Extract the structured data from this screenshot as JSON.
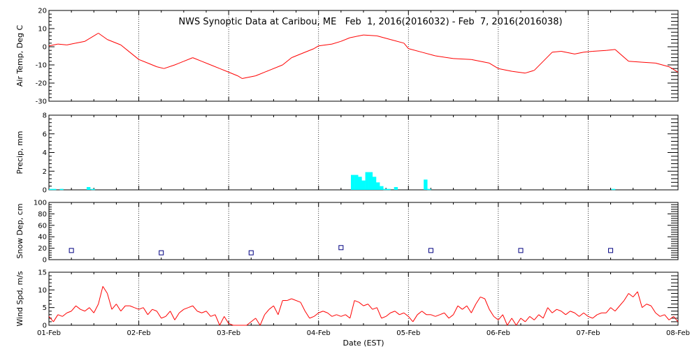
{
  "title": "NWS Synoptic Data at Caribou, ME   Feb  1, 2016(2016032) - Feb  7, 2016(2016038)",
  "xlabel": "Date (EST)",
  "x_ticks": [
    "01-Feb",
    "02-Feb",
    "03-Feb",
    "04-Feb",
    "05-Feb",
    "06-Feb",
    "07-Feb",
    "08-Feb"
  ],
  "colors": {
    "temp": "#ff0000",
    "precip": "#00ffff",
    "snow": "#000080",
    "wind": "#ff0000",
    "grid": "#000000"
  },
  "chart_data": [
    {
      "type": "line",
      "ylabel": "Air Temp, Deg C",
      "ylim": [
        -30,
        20
      ],
      "y_ticks": [
        20,
        10,
        0,
        -10,
        -20,
        -30
      ],
      "x_unit": "days since 01-Feb 00:00 EST",
      "points": [
        [
          0,
          0.5
        ],
        [
          0.1,
          1.5
        ],
        [
          0.2,
          1
        ],
        [
          0.3,
          2
        ],
        [
          0.4,
          3
        ],
        [
          0.5,
          6
        ],
        [
          0.55,
          7.5
        ],
        [
          0.65,
          4
        ],
        [
          0.8,
          1
        ],
        [
          0.9,
          -3
        ],
        [
          1.0,
          -7
        ],
        [
          1.1,
          -9
        ],
        [
          1.2,
          -11
        ],
        [
          1.28,
          -12
        ],
        [
          1.4,
          -10
        ],
        [
          1.5,
          -8
        ],
        [
          1.6,
          -6
        ],
        [
          1.7,
          -8
        ],
        [
          1.8,
          -10
        ],
        [
          1.9,
          -12
        ],
        [
          2.0,
          -14
        ],
        [
          2.1,
          -16
        ],
        [
          2.15,
          -17.5
        ],
        [
          2.3,
          -16
        ],
        [
          2.45,
          -13
        ],
        [
          2.6,
          -10
        ],
        [
          2.7,
          -6
        ],
        [
          2.8,
          -4
        ],
        [
          2.95,
          -1
        ],
        [
          3.0,
          0.5
        ],
        [
          3.15,
          1.5
        ],
        [
          3.25,
          3
        ],
        [
          3.35,
          5
        ],
        [
          3.5,
          6.5
        ],
        [
          3.65,
          6
        ],
        [
          3.8,
          4
        ],
        [
          3.95,
          2
        ],
        [
          4.0,
          -1
        ],
        [
          4.15,
          -3
        ],
        [
          4.3,
          -5
        ],
        [
          4.5,
          -6.5
        ],
        [
          4.7,
          -7
        ],
        [
          4.9,
          -9
        ],
        [
          5.0,
          -12
        ],
        [
          5.15,
          -13.5
        ],
        [
          5.3,
          -14.5
        ],
        [
          5.4,
          -13
        ],
        [
          5.5,
          -8
        ],
        [
          5.6,
          -3
        ],
        [
          5.7,
          -2.5
        ],
        [
          5.85,
          -4
        ],
        [
          5.95,
          -3
        ],
        [
          6.05,
          -2.5
        ],
        [
          6.2,
          -2
        ],
        [
          6.3,
          -1.5
        ],
        [
          6.45,
          -8
        ],
        [
          6.6,
          -8.5
        ],
        [
          6.75,
          -9
        ],
        [
          6.9,
          -11
        ],
        [
          7.0,
          -14
        ]
      ]
    },
    {
      "type": "bar",
      "ylabel": "Precip, mm",
      "ylim": [
        0,
        8
      ],
      "y_ticks": [
        8,
        6,
        4,
        2,
        0
      ],
      "x_unit": "days since 01-Feb 00:00 EST",
      "bar_width_days": 0.042,
      "points": [
        [
          0.0,
          0.1
        ],
        [
          0.04,
          0.1
        ],
        [
          0.12,
          0.1
        ],
        [
          0.42,
          0.3
        ],
        [
          0.47,
          0.1
        ],
        [
          3.36,
          1.6
        ],
        [
          3.4,
          1.6
        ],
        [
          3.44,
          1.4
        ],
        [
          3.48,
          1.0
        ],
        [
          3.52,
          1.9
        ],
        [
          3.56,
          1.9
        ],
        [
          3.6,
          1.4
        ],
        [
          3.64,
          0.8
        ],
        [
          3.68,
          0.4
        ],
        [
          3.72,
          0.1
        ],
        [
          3.76,
          0.1
        ],
        [
          3.84,
          0.3
        ],
        [
          4.17,
          1.1
        ],
        [
          4.21,
          0.1
        ],
        [
          6.26,
          0.1
        ]
      ]
    },
    {
      "type": "scatter",
      "ylabel": "Snow Dep, cm",
      "ylim": [
        0,
        100
      ],
      "y_ticks": [
        100,
        80,
        60,
        40,
        20,
        0
      ],
      "x_unit": "days since 01-Feb 00:00 EST",
      "points": [
        [
          0.25,
          16
        ],
        [
          1.25,
          12
        ],
        [
          2.25,
          12
        ],
        [
          3.25,
          21
        ],
        [
          4.25,
          16
        ],
        [
          5.25,
          16
        ],
        [
          6.25,
          16
        ]
      ]
    },
    {
      "type": "line",
      "ylabel": "Wind Spd, m/s",
      "ylim": [
        0,
        15
      ],
      "y_ticks": [
        15,
        10,
        5,
        0
      ],
      "x_unit": "days since 01-Feb 00:00 EST",
      "points": [
        [
          0,
          2.5
        ],
        [
          0.05,
          1
        ],
        [
          0.1,
          3
        ],
        [
          0.15,
          2.5
        ],
        [
          0.2,
          3.5
        ],
        [
          0.25,
          4
        ],
        [
          0.3,
          5.5
        ],
        [
          0.35,
          4.5
        ],
        [
          0.4,
          4
        ],
        [
          0.45,
          5
        ],
        [
          0.5,
          3.5
        ],
        [
          0.55,
          6
        ],
        [
          0.6,
          11
        ],
        [
          0.65,
          9
        ],
        [
          0.7,
          4.5
        ],
        [
          0.75,
          6
        ],
        [
          0.8,
          4
        ],
        [
          0.85,
          5.5
        ],
        [
          0.9,
          5.5
        ],
        [
          0.95,
          5
        ],
        [
          1.0,
          4.5
        ],
        [
          1.05,
          5
        ],
        [
          1.1,
          3
        ],
        [
          1.15,
          4.5
        ],
        [
          1.2,
          4
        ],
        [
          1.25,
          2
        ],
        [
          1.3,
          2.5
        ],
        [
          1.35,
          4
        ],
        [
          1.4,
          1.5
        ],
        [
          1.45,
          3.5
        ],
        [
          1.5,
          4.5
        ],
        [
          1.55,
          5
        ],
        [
          1.6,
          5.5
        ],
        [
          1.65,
          4
        ],
        [
          1.7,
          3.5
        ],
        [
          1.75,
          4
        ],
        [
          1.8,
          2.5
        ],
        [
          1.85,
          3
        ],
        [
          1.9,
          0
        ],
        [
          1.95,
          2.5
        ],
        [
          2.0,
          0.5
        ],
        [
          2.05,
          0
        ],
        [
          2.2,
          0
        ],
        [
          2.3,
          2
        ],
        [
          2.35,
          0
        ],
        [
          2.4,
          3
        ],
        [
          2.45,
          4.5
        ],
        [
          2.5,
          5.5
        ],
        [
          2.55,
          3
        ],
        [
          2.6,
          7
        ],
        [
          2.65,
          7
        ],
        [
          2.7,
          7.5
        ],
        [
          2.8,
          6.5
        ],
        [
          2.85,
          4
        ],
        [
          2.9,
          2
        ],
        [
          2.95,
          2.5
        ],
        [
          3.0,
          3.5
        ],
        [
          3.05,
          4
        ],
        [
          3.1,
          3.5
        ],
        [
          3.15,
          2.5
        ],
        [
          3.2,
          3
        ],
        [
          3.25,
          2.5
        ],
        [
          3.3,
          3
        ],
        [
          3.35,
          2
        ],
        [
          3.4,
          7
        ],
        [
          3.45,
          6.5
        ],
        [
          3.5,
          5.5
        ],
        [
          3.55,
          6
        ],
        [
          3.6,
          4.5
        ],
        [
          3.65,
          5
        ],
        [
          3.7,
          2
        ],
        [
          3.75,
          2.5
        ],
        [
          3.8,
          3.5
        ],
        [
          3.85,
          4
        ],
        [
          3.9,
          3
        ],
        [
          3.95,
          3.5
        ],
        [
          4.0,
          2.5
        ],
        [
          4.05,
          1
        ],
        [
          4.1,
          3
        ],
        [
          4.15,
          4
        ],
        [
          4.2,
          3
        ],
        [
          4.25,
          3
        ],
        [
          4.3,
          2.5
        ],
        [
          4.35,
          3
        ],
        [
          4.4,
          3.5
        ],
        [
          4.45,
          2
        ],
        [
          4.5,
          3
        ],
        [
          4.55,
          5.5
        ],
        [
          4.6,
          4.5
        ],
        [
          4.65,
          5.5
        ],
        [
          4.7,
          3.5
        ],
        [
          4.75,
          6
        ],
        [
          4.8,
          8
        ],
        [
          4.85,
          7.5
        ],
        [
          4.9,
          4.5
        ],
        [
          4.95,
          2.5
        ],
        [
          5.0,
          1.5
        ],
        [
          5.05,
          3
        ],
        [
          5.1,
          0
        ],
        [
          5.15,
          2
        ],
        [
          5.2,
          0
        ],
        [
          5.25,
          2
        ],
        [
          5.3,
          1
        ],
        [
          5.35,
          2.5
        ],
        [
          5.4,
          1.5
        ],
        [
          5.45,
          3
        ],
        [
          5.5,
          2
        ],
        [
          5.55,
          5
        ],
        [
          5.6,
          3.5
        ],
        [
          5.65,
          4.5
        ],
        [
          5.7,
          4
        ],
        [
          5.75,
          3
        ],
        [
          5.8,
          4
        ],
        [
          5.85,
          3.5
        ],
        [
          5.9,
          2.5
        ],
        [
          5.95,
          3.5
        ],
        [
          6.0,
          2.5
        ],
        [
          6.05,
          2
        ],
        [
          6.1,
          3
        ],
        [
          6.15,
          3.5
        ],
        [
          6.2,
          3.5
        ],
        [
          6.25,
          5
        ],
        [
          6.3,
          4
        ],
        [
          6.35,
          5.5
        ],
        [
          6.4,
          7
        ],
        [
          6.45,
          9
        ],
        [
          6.5,
          8
        ],
        [
          6.55,
          9.5
        ],
        [
          6.6,
          5
        ],
        [
          6.65,
          6
        ],
        [
          6.7,
          5.5
        ],
        [
          6.75,
          3.5
        ],
        [
          6.8,
          2.5
        ],
        [
          6.85,
          3
        ],
        [
          6.9,
          1.5
        ],
        [
          6.95,
          2.5
        ],
        [
          7.0,
          1
        ]
      ]
    }
  ]
}
